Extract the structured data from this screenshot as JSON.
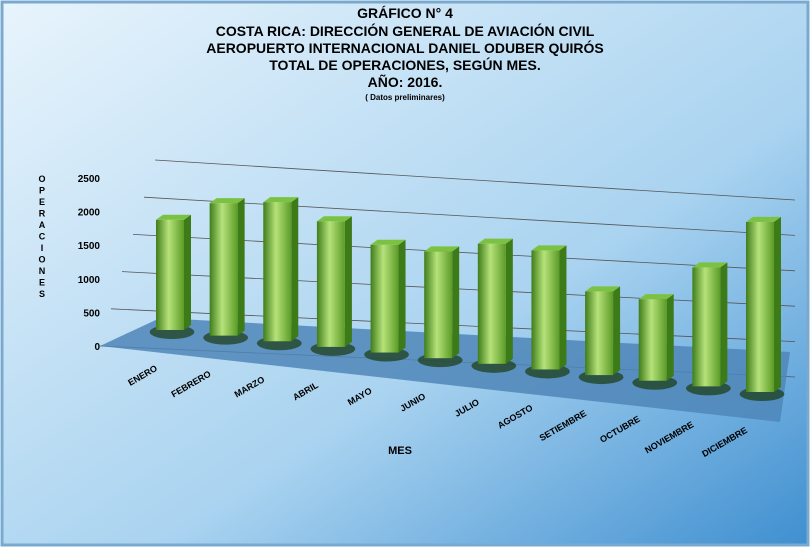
{
  "chart_data": {
    "type": "bar",
    "title": "GRÁFICO N° 4",
    "subtitle": [
      "COSTA RICA: DIRECCIÓN GENERAL DE AVIACIÓN CIVIL",
      "AEROPUERTO INTERNACIONAL DANIEL ODUBER QUIRÓS",
      "TOTAL DE OPERACIONES, SEGÚN MES.",
      "AÑO: 2016."
    ],
    "note": "( Datos preliminares)",
    "x_label": "MES",
    "y_label": "OPERACIONES",
    "categories": [
      "ENERO",
      "FEBRERO",
      "MARZO",
      "ABRIL",
      "MAYO",
      "JUNIO",
      "JULIO",
      "AGOSTO",
      "SETIEMBRE",
      "OCTUBRE",
      "NOVIEMBRE",
      "DICIEMBRE"
    ],
    "values": [
      1750,
      2050,
      2100,
      1850,
      1550,
      1500,
      1650,
      1600,
      1100,
      1050,
      1500,
      2100
    ],
    "color": "#7cc242",
    "ylim": [
      0,
      2500
    ],
    "yticks": [
      0,
      500,
      1000,
      1500,
      2000,
      2500
    ],
    "grid": true
  }
}
